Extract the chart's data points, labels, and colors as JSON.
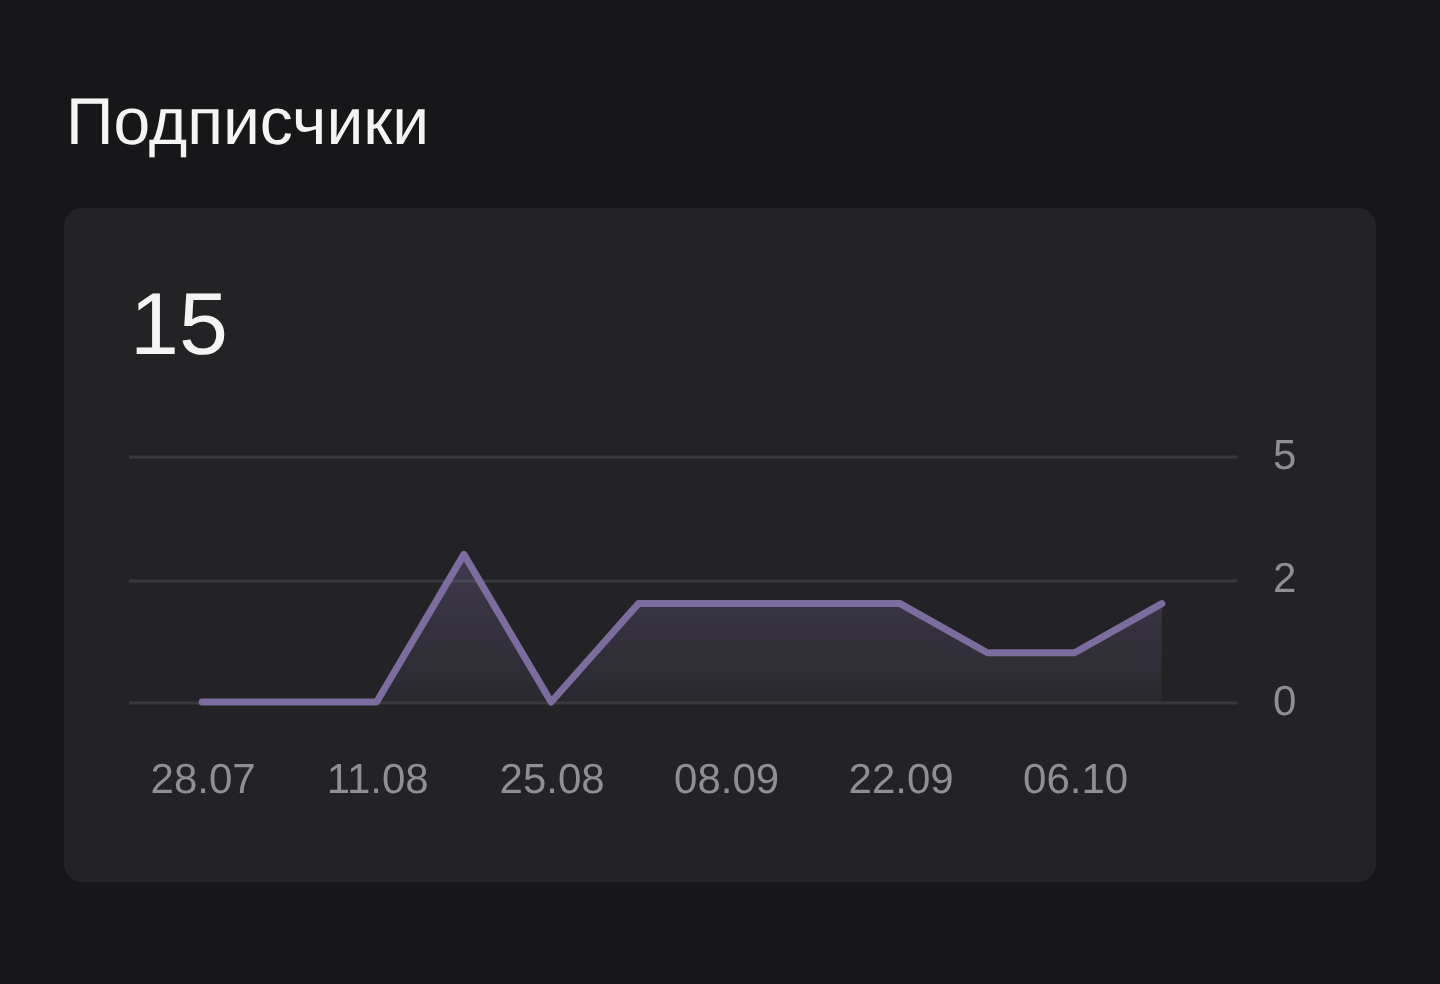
{
  "chart_data": {
    "type": "area",
    "title": "Подписчики",
    "subtitle": "15",
    "categories": [
      "28.07",
      null,
      "11.08",
      null,
      "25.08",
      null,
      "08.09",
      null,
      "22.09",
      null,
      "06.10",
      null
    ],
    "values": [
      0,
      0,
      0,
      3,
      0,
      2,
      2,
      2,
      2,
      1,
      1,
      2
    ],
    "color": "#7c6c9f",
    "ylim": [
      0,
      5
    ],
    "yticks": [
      0,
      {
        "value": 2.5,
        "label": "2"
      },
      5
    ],
    "grid": "y"
  }
}
